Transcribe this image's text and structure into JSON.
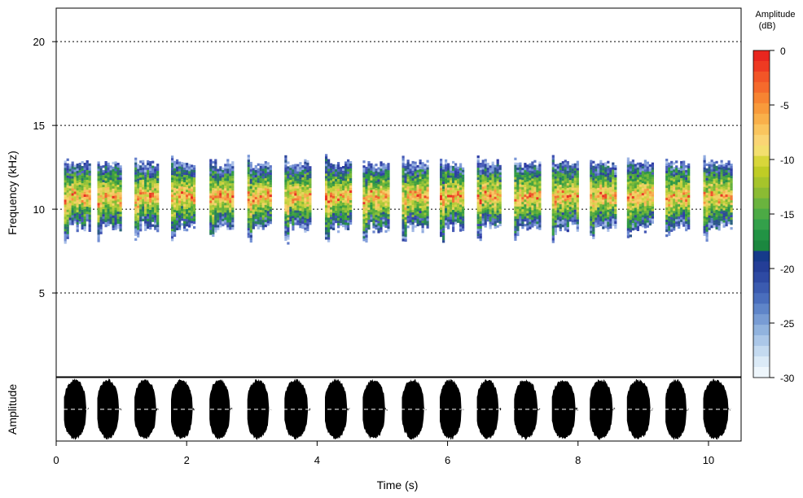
{
  "chart_data": [
    {
      "panel": "spectrogram",
      "type": "heatmap",
      "ylabel": "Frequency (kHz)",
      "xlim": [
        0,
        10.5
      ],
      "ylim": [
        0,
        22
      ],
      "yticks": [
        5,
        10,
        15,
        20
      ],
      "grid": "dotted horizontal lines at y ticks",
      "syllables": [
        {
          "start": 0.12,
          "end": 0.5
        },
        {
          "start": 0.63,
          "end": 1.0
        },
        {
          "start": 1.2,
          "end": 1.57
        },
        {
          "start": 1.76,
          "end": 2.13
        },
        {
          "start": 2.35,
          "end": 2.7
        },
        {
          "start": 2.93,
          "end": 3.3
        },
        {
          "start": 3.5,
          "end": 3.9
        },
        {
          "start": 4.12,
          "end": 4.5
        },
        {
          "start": 4.7,
          "end": 5.08
        },
        {
          "start": 5.3,
          "end": 5.68
        },
        {
          "start": 5.88,
          "end": 6.25
        },
        {
          "start": 6.45,
          "end": 6.82
        },
        {
          "start": 7.02,
          "end": 7.42
        },
        {
          "start": 7.6,
          "end": 8.0
        },
        {
          "start": 8.18,
          "end": 8.57
        },
        {
          "start": 8.75,
          "end": 9.15
        },
        {
          "start": 9.34,
          "end": 9.7
        },
        {
          "start": 9.92,
          "end": 10.35
        }
      ],
      "band_khz": {
        "low": 9,
        "high": 13,
        "peak": 11
      }
    },
    {
      "panel": "oscillogram",
      "type": "area",
      "ylabel": "Amplitude",
      "xlabel": "Time (s)",
      "xticks": [
        0,
        2,
        4,
        6,
        8,
        10
      ]
    }
  ],
  "colorbar": {
    "title_line1": "Amplitude",
    "title_line2": "(dB)",
    "range": [
      -30,
      0
    ],
    "ticks": [
      "0",
      "-5",
      "-10",
      "-15",
      "-20",
      "-25",
      "-30"
    ],
    "colors_top_to_bottom": [
      "#e8261f",
      "#ee3a22",
      "#f25527",
      "#f56a2c",
      "#f78432",
      "#f89a3b",
      "#f9b04a",
      "#fac55e",
      "#fad574",
      "#f3df6e",
      "#d8d63a",
      "#bfcc25",
      "#a6c42b",
      "#8bbb33",
      "#6ab33e",
      "#4caa45",
      "#33a04a",
      "#229344",
      "#1b873f",
      "#163a8a",
      "#243e97",
      "#2e4aa3",
      "#3b5bb0",
      "#4a6ebd",
      "#5f85c9",
      "#789cd4",
      "#91b3de",
      "#abc7e8",
      "#c4daf0",
      "#dbeaf7",
      "#eef6fc"
    ]
  }
}
